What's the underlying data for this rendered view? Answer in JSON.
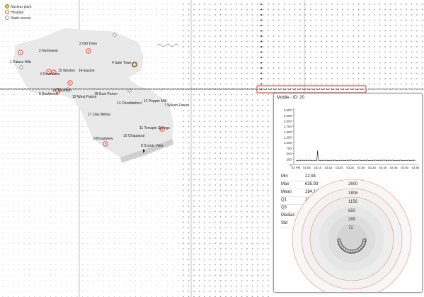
{
  "legend": [
    {
      "label": "Nuclear plant",
      "icon": "nuclear-icon"
    },
    {
      "label": "Hospital",
      "icon": "hospital-icon"
    },
    {
      "label": "Static sensor",
      "icon": "static-sensor-icon"
    }
  ],
  "neighborhoods": [
    "1 Palace Hills",
    "2 Northwest",
    "3 Old Town",
    "4 Safe Town",
    "5 Southwest",
    "6 Downtown",
    "7 Wilson Forest",
    "8 Scenic Vista",
    "9 Broadview",
    "10 Chapparal",
    "11 Terrapin Springs",
    "12 Pepper Mill",
    "13 Cheddarford",
    "14 Easton",
    "15 Weston",
    "16 Southton",
    "17 Oak Willow",
    "18 East Parton",
    "19 West Parton"
  ],
  "popup": {
    "title": "Mobile - ID: 20",
    "stats": [
      {
        "label": "Min",
        "value": "22.94"
      },
      {
        "label": "Max",
        "value": "635.93"
      },
      {
        "label": "Mean",
        "value": "184.14"
      },
      {
        "label": "Q1",
        "value": "180.67"
      },
      {
        "label": "Q3",
        "value": "194.08"
      },
      {
        "label": "Median",
        "value": "187.42"
      },
      {
        "label": "Std",
        "value": "39.44"
      }
    ],
    "radial_rings": [
      "2600",
      "1806",
      "1156",
      "650",
      "289",
      "72"
    ]
  },
  "colors": {
    "city_shape": "#e9e9e9",
    "highlight_border": "#cc3333",
    "hospital": "#e74c3c",
    "nuclear": "#e6c619",
    "series_line": "#111111",
    "ring": "#e88"
  },
  "chart_data": {
    "type": "line",
    "series": [
      {
        "x": [
          "03 PM",
          "03:05",
          "03:10",
          "03:15",
          "03:20",
          "03:25",
          "03:30",
          "03:35",
          "03:40",
          "03:45",
          "03:50",
          "03:55"
        ],
        "values": [
          180,
          190,
          636,
          185,
          182,
          188,
          186,
          184,
          190,
          185,
          183,
          187
        ]
      }
    ],
    "x_ticks": [
      "03 PM",
      "03:05",
      "03:10",
      "03:15",
      "03:20",
      "03:25",
      "03:30",
      "03:35",
      "03:40",
      "03:45",
      "03:50",
      "03:55"
    ],
    "y_ticks": [
      "0",
      "250",
      "500",
      "750",
      "1,000",
      "1,250",
      "1,500",
      "1,750",
      "2,000",
      "2,250",
      "2,500"
    ],
    "ylim": [
      0,
      2600
    ],
    "grid": false
  }
}
